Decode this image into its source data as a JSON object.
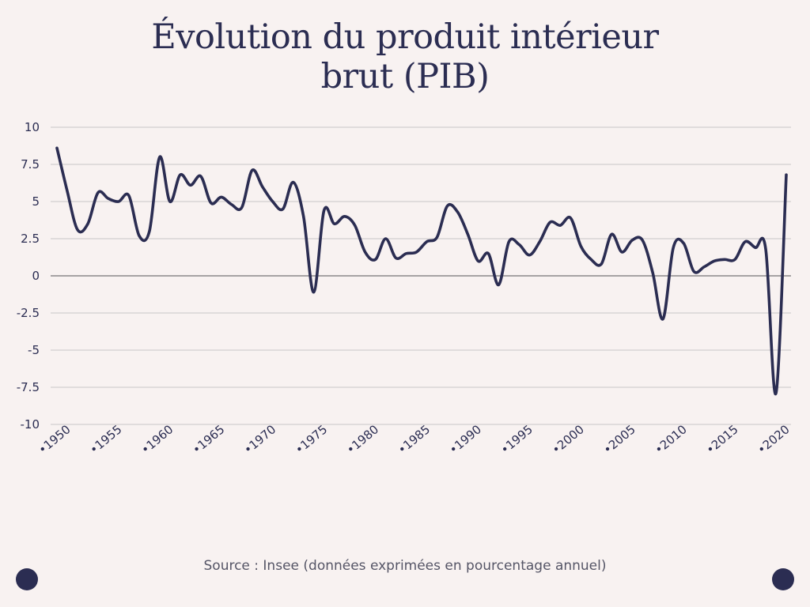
{
  "chart_data": {
    "type": "line",
    "title_line1": "Évolution du produit intérieur",
    "title_line2": "brut (PIB)",
    "xlabel": "",
    "ylabel": "",
    "ylim": [
      -10,
      10
    ],
    "yticks": [
      "10",
      "7.5",
      "5",
      "2.5",
      "0",
      "-2.5",
      "-5",
      "-7.5",
      "-10"
    ],
    "ytick_values": [
      10,
      7.5,
      5,
      2.5,
      0,
      -2.5,
      -5,
      -7.5,
      -10
    ],
    "xlim": [
      1950,
      2021
    ],
    "xticks": [
      "1950",
      "1955",
      "1960",
      "1965",
      "1970",
      "1975",
      "1980",
      "1985",
      "1990",
      "1995",
      "2000",
      "2005",
      "2010",
      "2015",
      "2020"
    ],
    "xtick_values": [
      1950,
      1955,
      1960,
      1965,
      1970,
      1975,
      1980,
      1985,
      1990,
      1995,
      2000,
      2005,
      2010,
      2015,
      2020
    ],
    "grid": true,
    "line_color": "#2b2d52",
    "grid_color": "#c9c5c6",
    "zero_line_color": "#8a8789",
    "series": [
      {
        "x": [
          1950,
          1951,
          1952,
          1953,
          1954,
          1955,
          1956,
          1957,
          1958,
          1959,
          1960,
          1961,
          1962,
          1963,
          1964,
          1965,
          1966,
          1967,
          1968,
          1969,
          1970,
          1971,
          1972,
          1973,
          1974,
          1975,
          1976,
          1977,
          1978,
          1979,
          1980,
          1981,
          1982,
          1983,
          1984,
          1985,
          1986,
          1987,
          1988,
          1989,
          1990,
          1991,
          1992,
          1993,
          1994,
          1995,
          1996,
          1997,
          1998,
          1999,
          2000,
          2001,
          2002,
          2003,
          2004,
          2005,
          2006,
          2007,
          2008,
          2009,
          2010,
          2011,
          2012,
          2013,
          2014,
          2015,
          2016,
          2017,
          2018,
          2019,
          2020,
          2021
        ],
        "values": [
          8.6,
          5.7,
          3.1,
          3.5,
          5.6,
          5.2,
          5.0,
          5.4,
          2.7,
          3.0,
          8.0,
          5.0,
          6.8,
          6.1,
          6.7,
          4.9,
          5.3,
          4.8,
          4.6,
          7.1,
          6.0,
          5.0,
          4.5,
          6.3,
          4.0,
          -1.1,
          4.4,
          3.5,
          4.0,
          3.4,
          1.6,
          1.1,
          2.5,
          1.2,
          1.5,
          1.6,
          2.3,
          2.6,
          4.7,
          4.3,
          2.8,
          1.0,
          1.5,
          -0.6,
          2.3,
          2.1,
          1.4,
          2.3,
          3.6,
          3.4,
          3.9,
          2.0,
          1.1,
          0.8,
          2.8,
          1.6,
          2.4,
          2.4,
          0.2,
          -2.9,
          1.9,
          2.2,
          0.3,
          0.6,
          1.0,
          1.1,
          1.1,
          2.3,
          1.9,
          1.8,
          -7.9,
          6.8
        ]
      }
    ]
  },
  "source": "Source : Insee (données exprimées en pourcentage annuel)"
}
